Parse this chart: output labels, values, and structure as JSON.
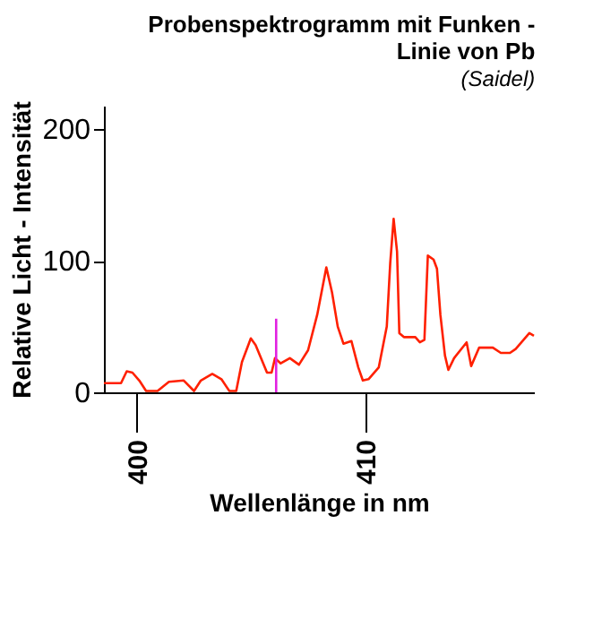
{
  "chart_data": {
    "type": "line",
    "title": [
      "Probenspektrogramm mit Funken -",
      "Linie von Pb"
    ],
    "subtitle": "(Saidel)",
    "xlabel": "Wellenlänge in nm",
    "ylabel": "Relative Licht - Intensität",
    "x": [
      398.55,
      399.3,
      399.55,
      399.8,
      400.1,
      400.4,
      400.9,
      401.4,
      402.05,
      402.5,
      402.8,
      403.3,
      403.7,
      404.05,
      404.35,
      404.6,
      404.99,
      405.2,
      405.7,
      405.9,
      406.05,
      406.3,
      406.7,
      407.1,
      407.5,
      407.9,
      408.3,
      408.55,
      408.8,
      409.05,
      409.4,
      409.7,
      409.9,
      410.15,
      410.6,
      410.95,
      411.1,
      411.25,
      411.4,
      411.5,
      411.7,
      412.2,
      412.4,
      412.6,
      412.75,
      413.0,
      413.15,
      413.3,
      413.5,
      413.65,
      413.9,
      414.45,
      414.65,
      415.0,
      415.6,
      415.95,
      416.35,
      416.6,
      417.2,
      417.4
    ],
    "series": [
      {
        "color": "#ff2000",
        "values": [
          7,
          7,
          16,
          15,
          9,
          1,
          1,
          8,
          9,
          1,
          9,
          14,
          10,
          1,
          1,
          23,
          41,
          36,
          15,
          15,
          26,
          22,
          26,
          21,
          32,
          59,
          95,
          76,
          50,
          37,
          39,
          19,
          9,
          10,
          19,
          50,
          98,
          132,
          107,
          45,
          42,
          42,
          38,
          40,
          104,
          101,
          94,
          59,
          28,
          17,
          26,
          38,
          20,
          34,
          34,
          30,
          30,
          33,
          45,
          43
        ]
      },
      {
        "type": "line",
        "color": "#e020e0",
        "x": [
          406.1,
          406.1
        ],
        "values": [
          0,
          56
        ]
      }
    ],
    "xlim": [
      398.55,
      417.4
    ],
    "xticks": [
      400,
      410
    ],
    "ylim": [
      0,
      218
    ],
    "yticks": [
      0,
      100,
      200
    ],
    "grid": false
  }
}
